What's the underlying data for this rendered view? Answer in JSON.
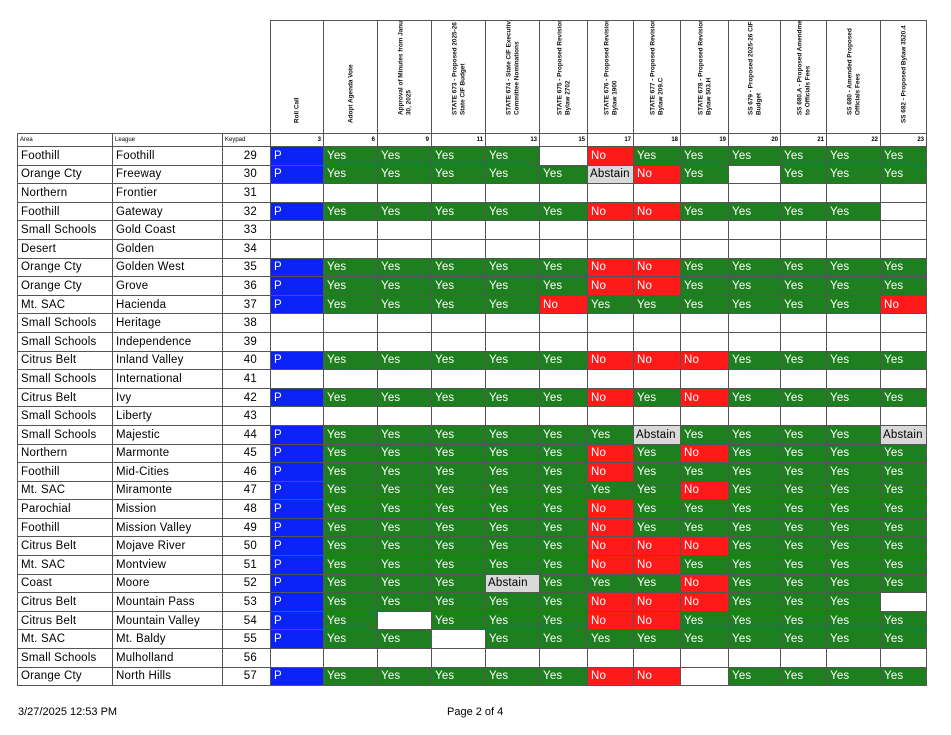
{
  "header": {
    "area_label": "Area",
    "league_label": "League",
    "keypad_label": "Keypad",
    "columns": [
      {
        "title": "Roll Call",
        "num": "3"
      },
      {
        "title": "Adopt Agenda Vote",
        "num": "6"
      },
      {
        "title": "Approval of Minutes from January 30, 2025",
        "num": "9"
      },
      {
        "title": "STATE 673 - Proposed 2025-26 State CIF Budget",
        "num": "11"
      },
      {
        "title": "STATE 674 - State CIF Executive Committee Nominations",
        "num": "13"
      },
      {
        "title": "STATE 675 - Proposed Revision Bylaw 2702",
        "num": "15"
      },
      {
        "title": "STATE 676 - Proposed Revision Bylaw 1900",
        "num": "17"
      },
      {
        "title": "STATE 677 - Proposed Revision Bylaw 209.C",
        "num": "18"
      },
      {
        "title": "STATE 678 - Proposed Revision Bylaw 503.H",
        "num": "19"
      },
      {
        "title": "SS 679 - Proposed 2025-26 CIFSS Budget",
        "num": "20"
      },
      {
        "title": "SS 680.A - Proposed Amendment to Officials Fees",
        "num": "21"
      },
      {
        "title": "SS 680 - Amended Proposed Officials Fees",
        "num": "22"
      },
      {
        "title": "SS 682 - Proposed Bylaw 3520.4",
        "num": "23"
      }
    ]
  },
  "rows": [
    {
      "area": "Foothill",
      "league": "Foothill",
      "keypad": "29",
      "votes": [
        "P",
        "Yes",
        "Yes",
        "Yes",
        "Yes",
        "",
        "No",
        "Yes",
        "Yes",
        "Yes",
        "Yes",
        "Yes",
        "Yes"
      ]
    },
    {
      "area": "Orange Cty",
      "league": "Freeway",
      "keypad": "30",
      "votes": [
        "P",
        "Yes",
        "Yes",
        "Yes",
        "Yes",
        "Yes",
        "Abstain",
        "No",
        "Yes",
        "",
        "Yes",
        "Yes",
        "Yes"
      ]
    },
    {
      "area": "Northern",
      "league": "Frontier",
      "keypad": "31",
      "votes": [
        "",
        "",
        "",
        "",
        "",
        "",
        "",
        "",
        "",
        "",
        "",
        "",
        ""
      ]
    },
    {
      "area": "Foothill",
      "league": "Gateway",
      "keypad": "32",
      "votes": [
        "P",
        "Yes",
        "Yes",
        "Yes",
        "Yes",
        "Yes",
        "No",
        "No",
        "Yes",
        "Yes",
        "Yes",
        "Yes",
        ""
      ]
    },
    {
      "area": "Small Schools",
      "league": "Gold Coast",
      "keypad": "33",
      "votes": [
        "",
        "",
        "",
        "",
        "",
        "",
        "",
        "",
        "",
        "",
        "",
        "",
        ""
      ]
    },
    {
      "area": "Desert",
      "league": "Golden",
      "keypad": "34",
      "votes": [
        "",
        "",
        "",
        "",
        "",
        "",
        "",
        "",
        "",
        "",
        "",
        "",
        ""
      ]
    },
    {
      "area": "Orange Cty",
      "league": "Golden West",
      "keypad": "35",
      "votes": [
        "P",
        "Yes",
        "Yes",
        "Yes",
        "Yes",
        "Yes",
        "No",
        "No",
        "Yes",
        "Yes",
        "Yes",
        "Yes",
        "Yes"
      ]
    },
    {
      "area": "Orange Cty",
      "league": "Grove",
      "keypad": "36",
      "votes": [
        "P",
        "Yes",
        "Yes",
        "Yes",
        "Yes",
        "Yes",
        "No",
        "No",
        "Yes",
        "Yes",
        "Yes",
        "Yes",
        "Yes"
      ]
    },
    {
      "area": "Mt. SAC",
      "league": "Hacienda",
      "keypad": "37",
      "votes": [
        "P",
        "Yes",
        "Yes",
        "Yes",
        "Yes",
        "No",
        "Yes",
        "Yes",
        "Yes",
        "Yes",
        "Yes",
        "Yes",
        "No"
      ]
    },
    {
      "area": "Small Schools",
      "league": "Heritage",
      "keypad": "38",
      "votes": [
        "",
        "",
        "",
        "",
        "",
        "",
        "",
        "",
        "",
        "",
        "",
        "",
        ""
      ]
    },
    {
      "area": "Small Schools",
      "league": "Independence",
      "keypad": "39",
      "votes": [
        "",
        "",
        "",
        "",
        "",
        "",
        "",
        "",
        "",
        "",
        "",
        "",
        ""
      ]
    },
    {
      "area": "Citrus Belt",
      "league": "Inland Valley",
      "keypad": "40",
      "votes": [
        "P",
        "Yes",
        "Yes",
        "Yes",
        "Yes",
        "Yes",
        "No",
        "No",
        "No",
        "Yes",
        "Yes",
        "Yes",
        "Yes"
      ]
    },
    {
      "area": "Small Schools",
      "league": "International",
      "keypad": "41",
      "votes": [
        "",
        "",
        "",
        "",
        "",
        "",
        "",
        "",
        "",
        "",
        "",
        "",
        ""
      ]
    },
    {
      "area": "Citrus Belt",
      "league": "Ivy",
      "keypad": "42",
      "votes": [
        "P",
        "Yes",
        "Yes",
        "Yes",
        "Yes",
        "Yes",
        "No",
        "Yes",
        "No",
        "Yes",
        "Yes",
        "Yes",
        "Yes"
      ]
    },
    {
      "area": "Small Schools",
      "league": "Liberty",
      "keypad": "43",
      "votes": [
        "",
        "",
        "",
        "",
        "",
        "",
        "",
        "",
        "",
        "",
        "",
        "",
        ""
      ]
    },
    {
      "area": "Small Schools",
      "league": "Majestic",
      "keypad": "44",
      "votes": [
        "P",
        "Yes",
        "Yes",
        "Yes",
        "Yes",
        "Yes",
        "Yes",
        "Abstain",
        "Yes",
        "Yes",
        "Yes",
        "Yes",
        "Abstain"
      ]
    },
    {
      "area": "Northern",
      "league": "Marmonte",
      "keypad": "45",
      "votes": [
        "P",
        "Yes",
        "Yes",
        "Yes",
        "Yes",
        "Yes",
        "No",
        "Yes",
        "No",
        "Yes",
        "Yes",
        "Yes",
        "Yes"
      ]
    },
    {
      "area": "Foothill",
      "league": "Mid-Cities",
      "keypad": "46",
      "votes": [
        "P",
        "Yes",
        "Yes",
        "Yes",
        "Yes",
        "Yes",
        "No",
        "Yes",
        "Yes",
        "Yes",
        "Yes",
        "Yes",
        "Yes"
      ]
    },
    {
      "area": "Mt. SAC",
      "league": "Miramonte",
      "keypad": "47",
      "votes": [
        "P",
        "Yes",
        "Yes",
        "Yes",
        "Yes",
        "Yes",
        "Yes",
        "Yes",
        "No",
        "Yes",
        "Yes",
        "Yes",
        "Yes"
      ]
    },
    {
      "area": "Parochial",
      "league": "Mission",
      "keypad": "48",
      "votes": [
        "P",
        "Yes",
        "Yes",
        "Yes",
        "Yes",
        "Yes",
        "No",
        "Yes",
        "Yes",
        "Yes",
        "Yes",
        "Yes",
        "Yes"
      ]
    },
    {
      "area": "Foothill",
      "league": "Mission Valley",
      "keypad": "49",
      "votes": [
        "P",
        "Yes",
        "Yes",
        "Yes",
        "Yes",
        "Yes",
        "No",
        "Yes",
        "Yes",
        "Yes",
        "Yes",
        "Yes",
        "Yes"
      ]
    },
    {
      "area": "Citrus Belt",
      "league": "Mojave River",
      "keypad": "50",
      "votes": [
        "P",
        "Yes",
        "Yes",
        "Yes",
        "Yes",
        "Yes",
        "No",
        "No",
        "No",
        "Yes",
        "Yes",
        "Yes",
        "Yes"
      ]
    },
    {
      "area": "Mt. SAC",
      "league": "Montview",
      "keypad": "51",
      "votes": [
        "P",
        "Yes",
        "Yes",
        "Yes",
        "Yes",
        "Yes",
        "No",
        "No",
        "Yes",
        "Yes",
        "Yes",
        "Yes",
        "Yes"
      ]
    },
    {
      "area": "Coast",
      "league": "Moore",
      "keypad": "52",
      "votes": [
        "P",
        "Yes",
        "Yes",
        "Yes",
        "Abstain",
        "Yes",
        "Yes",
        "Yes",
        "No",
        "Yes",
        "Yes",
        "Yes",
        "Yes"
      ]
    },
    {
      "area": "Citrus Belt",
      "league": "Mountain Pass",
      "keypad": "53",
      "votes": [
        "P",
        "Yes",
        "Yes",
        "Yes",
        "Yes",
        "Yes",
        "No",
        "No",
        "No",
        "Yes",
        "Yes",
        "Yes",
        ""
      ]
    },
    {
      "area": "Citrus Belt",
      "league": "Mountain Valley",
      "keypad": "54",
      "votes": [
        "P",
        "Yes",
        "",
        "Yes",
        "Yes",
        "Yes",
        "No",
        "No",
        "Yes",
        "Yes",
        "Yes",
        "Yes",
        "Yes"
      ]
    },
    {
      "area": "Mt. SAC",
      "league": "Mt. Baldy",
      "keypad": "55",
      "votes": [
        "P",
        "Yes",
        "Yes",
        "",
        "Yes",
        "Yes",
        "Yes",
        "Yes",
        "Yes",
        "Yes",
        "Yes",
        "Yes",
        "Yes"
      ]
    },
    {
      "area": "Small Schools",
      "league": "Mulholland",
      "keypad": "56",
      "votes": [
        "",
        "",
        "",
        "",
        "",
        "",
        "",
        "",
        "",
        "",
        "",
        "",
        ""
      ]
    },
    {
      "area": "Orange Cty",
      "league": "North Hills",
      "keypad": "57",
      "votes": [
        "P",
        "Yes",
        "Yes",
        "Yes",
        "Yes",
        "Yes",
        "No",
        "No",
        "",
        "Yes",
        "Yes",
        "Yes",
        "Yes"
      ]
    }
  ],
  "colors": {
    "yes": "#1e7f1e",
    "no": "#ff1a1a",
    "abstain": "#d9d9d9",
    "present": "#0a22f5"
  },
  "footer": {
    "timestamp": "3/27/2025 12:53 PM",
    "page": "Page 2 of 4"
  }
}
